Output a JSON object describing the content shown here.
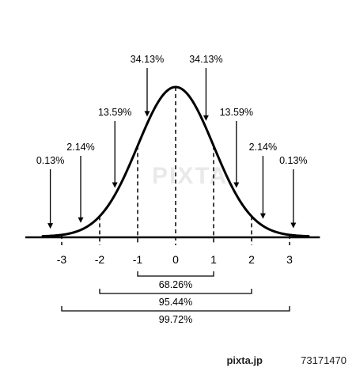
{
  "chart_data": {
    "type": "line",
    "title": "",
    "xlabel": "",
    "ylabel": "",
    "x_ticks": [
      "-3",
      "-2",
      "-1",
      "0",
      "1",
      "2",
      "3"
    ],
    "xlim": [
      -4,
      3.8
    ],
    "grid": false,
    "legend": "none",
    "curve": {
      "distribution": "standard normal",
      "mean": 0,
      "sd": 1
    },
    "segments": [
      {
        "label": "0.13%",
        "x": -3.3
      },
      {
        "label": "2.14%",
        "x": -2.5
      },
      {
        "label": "13.59%",
        "x": -1.6
      },
      {
        "label": "34.13%",
        "x": -0.75
      },
      {
        "label": "34.13%",
        "x": 0.8
      },
      {
        "label": "13.59%",
        "x": 1.6
      },
      {
        "label": "2.14%",
        "x": 2.3
      },
      {
        "label": "0.13%",
        "x": 3.1
      }
    ],
    "ranges": [
      {
        "label": "68.26%",
        "from": -1,
        "to": 1
      },
      {
        "label": "95.44%",
        "from": -2,
        "to": 2
      },
      {
        "label": "99.72%",
        "from": -3,
        "to": 3
      }
    ],
    "colors": {
      "curve": "#000000",
      "background": "#ffffff"
    }
  },
  "watermark": "PIXTA",
  "footer": {
    "brand": "pixta.jp",
    "id": "73171470"
  }
}
